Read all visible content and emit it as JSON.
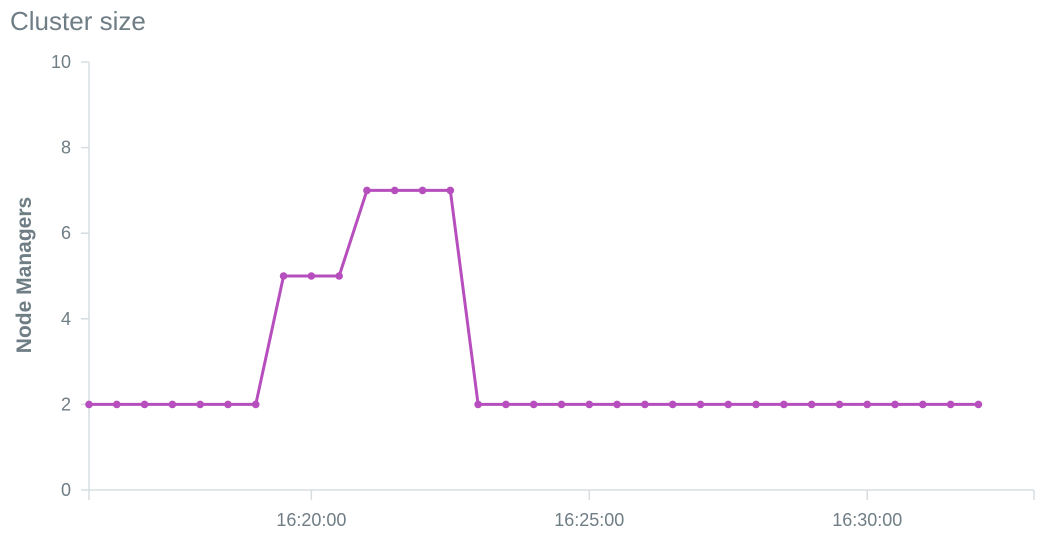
{
  "chart_data": {
    "type": "line",
    "title": "Cluster size",
    "ylabel": "Node Managers",
    "xlabel": "",
    "ylim": [
      0,
      10
    ],
    "y_ticks": [
      0,
      2,
      4,
      6,
      8,
      10
    ],
    "x_range": [
      "16:16:00",
      "16:33:00"
    ],
    "x_ticks": [
      "16:20:00",
      "16:25:00",
      "16:30:00"
    ],
    "grid": false,
    "line_color": "#b64fbd",
    "series": [
      {
        "x": [
          "16:16:00",
          "16:16:30",
          "16:17:00",
          "16:17:30",
          "16:18:00",
          "16:18:30",
          "16:19:00",
          "16:19:30",
          "16:20:00",
          "16:20:30",
          "16:21:00",
          "16:21:30",
          "16:22:00",
          "16:22:30",
          "16:23:00",
          "16:23:30",
          "16:24:00",
          "16:24:30",
          "16:25:00",
          "16:25:30",
          "16:26:00",
          "16:26:30",
          "16:27:00",
          "16:27:30",
          "16:28:00",
          "16:28:30",
          "16:29:00",
          "16:29:30",
          "16:30:00",
          "16:30:30",
          "16:31:00",
          "16:31:30",
          "16:32:00"
        ],
        "values": [
          2,
          2,
          2,
          2,
          2,
          2,
          2,
          5,
          5,
          5,
          7,
          7,
          7,
          7,
          2,
          2,
          2,
          2,
          2,
          2,
          2,
          2,
          2,
          2,
          2,
          2,
          2,
          2,
          2,
          2,
          2,
          2,
          2
        ]
      }
    ]
  }
}
